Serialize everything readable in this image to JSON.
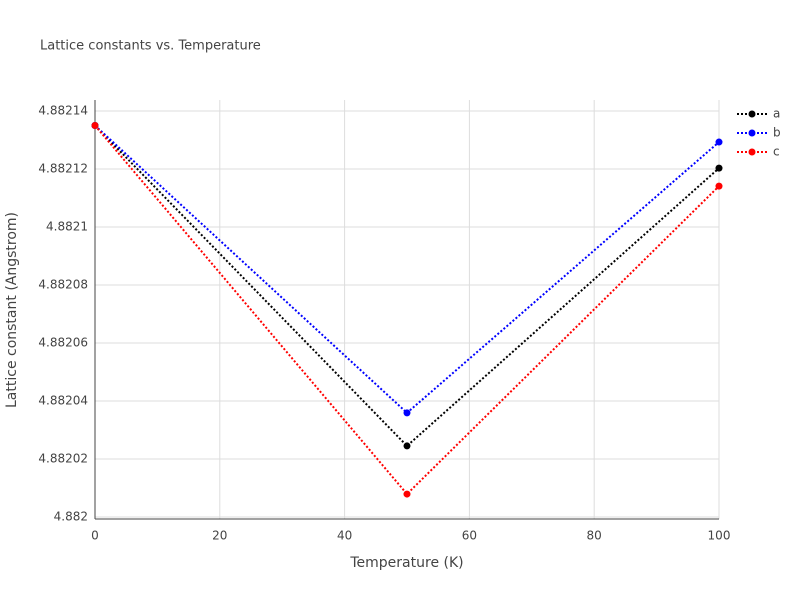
{
  "chart_data": {
    "type": "line",
    "title": "Lattice constants vs. Temperature",
    "x_label": "Temperature (K)",
    "y_label": "Lattice constant (Angstrom)",
    "x": [
      0,
      50,
      100
    ],
    "series": [
      {
        "name": "a",
        "color": "#000000",
        "values": [
          4.882135,
          4.8820245,
          4.8821203
        ]
      },
      {
        "name": "b",
        "color": "#0000ff",
        "values": [
          4.882135,
          4.8820359,
          4.8821293
        ]
      },
      {
        "name": "c",
        "color": "#ff0000",
        "values": [
          4.882135,
          4.8820079,
          4.8821141
        ]
      }
    ],
    "xlim": [
      0,
      100
    ],
    "xticks": [
      0,
      20,
      40,
      60,
      80,
      100
    ],
    "ylim": [
      4.8819993,
      4.8821438
    ],
    "yticks": [
      4.882,
      4.88202,
      4.88204,
      4.88206,
      4.88208,
      4.8821,
      4.88212,
      4.88214
    ],
    "grid": true,
    "line_style": "dotted",
    "legend": "top-right"
  }
}
